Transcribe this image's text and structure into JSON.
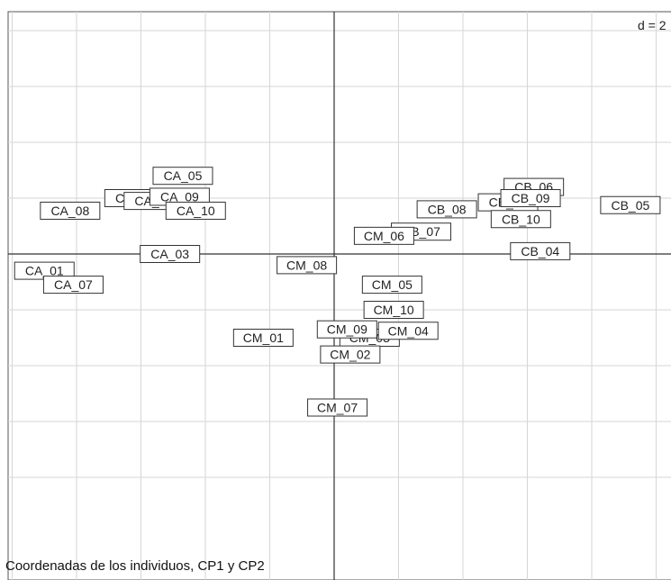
{
  "chart_data": {
    "type": "scatter",
    "title": "Coordenadas de los individuos, CP1 y CP2",
    "grid_label": "d = 2",
    "grid_step": 2,
    "xlim": [
      -10.3,
      10.6
    ],
    "ylim": [
      -9.3,
      8.8
    ],
    "grid": true,
    "points": [
      {
        "label": "CA_05",
        "x": -4.7,
        "y": 2.8
      },
      {
        "label": "CA_06",
        "x": -6.2,
        "y": 2.0
      },
      {
        "label": "CA_02",
        "x": -5.6,
        "y": 1.9
      },
      {
        "label": "CA_09",
        "x": -4.8,
        "y": 2.05
      },
      {
        "label": "CA_08",
        "x": -8.2,
        "y": 1.55
      },
      {
        "label": "CA_10",
        "x": -4.3,
        "y": 1.55
      },
      {
        "label": "CA_03",
        "x": -5.1,
        "y": 0.0
      },
      {
        "label": "CA_01",
        "x": -9.0,
        "y": -0.6
      },
      {
        "label": "CA_07",
        "x": -8.1,
        "y": -1.1
      },
      {
        "label": "CB_06",
        "x": 6.2,
        "y": 2.4
      },
      {
        "label": "CB_03",
        "x": 5.4,
        "y": 1.85
      },
      {
        "label": "CB_09",
        "x": 6.1,
        "y": 2.0
      },
      {
        "label": "CB_08",
        "x": 3.5,
        "y": 1.6
      },
      {
        "label": "CB_10",
        "x": 5.8,
        "y": 1.25
      },
      {
        "label": "CB_05",
        "x": 9.2,
        "y": 1.75
      },
      {
        "label": "CB_07",
        "x": 2.7,
        "y": 0.8
      },
      {
        "label": "CB_04",
        "x": 6.4,
        "y": 0.1
      },
      {
        "label": "CM_06",
        "x": 1.55,
        "y": 0.65
      },
      {
        "label": "CM_08",
        "x": -0.85,
        "y": -0.4
      },
      {
        "label": "CM_05",
        "x": 1.8,
        "y": -1.1
      },
      {
        "label": "CM_10",
        "x": 1.85,
        "y": -2.0
      },
      {
        "label": "CM_03",
        "x": 1.1,
        "y": -3.0
      },
      {
        "label": "CM_09",
        "x": 0.4,
        "y": -2.7
      },
      {
        "label": "CM_04",
        "x": 2.3,
        "y": -2.75
      },
      {
        "label": "CM_01",
        "x": -2.2,
        "y": -3.0
      },
      {
        "label": "CM_02",
        "x": 0.5,
        "y": -3.6
      },
      {
        "label": "CM_07",
        "x": 0.1,
        "y": -5.5
      }
    ]
  }
}
